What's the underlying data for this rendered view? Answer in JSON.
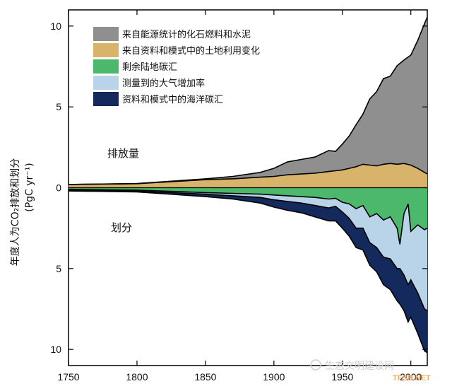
{
  "chart_data": {
    "type": "area",
    "ylabel": "年度人为CO₂排放和划分",
    "ylabel_unit": "(PgC yr⁻¹)",
    "xlim": [
      1750,
      2012
    ],
    "ylim": [
      -11,
      11
    ],
    "x_ticks": [
      1750,
      1800,
      1850,
      1900,
      1950,
      2000
    ],
    "y_ticks": [
      10,
      5,
      0,
      5,
      10
    ],
    "y_tick_values": [
      10,
      5,
      0,
      -5,
      -10
    ],
    "annotations": {
      "emissions": "排放量",
      "partition": "划分"
    },
    "legend_position": "top-right",
    "emissions_series": [
      {
        "name": "来自能源统计的化石燃料和水泥",
        "color": "#8f8f8f",
        "x": [
          1750,
          1800,
          1850,
          1870,
          1890,
          1900,
          1910,
          1920,
          1930,
          1940,
          1945,
          1950,
          1955,
          1960,
          1965,
          1970,
          1975,
          1980,
          1985,
          1990,
          1995,
          2000,
          2005,
          2010,
          2012
        ],
        "values": [
          0.003,
          0.01,
          0.05,
          0.15,
          0.3,
          0.5,
          0.8,
          0.9,
          1.0,
          1.3,
          1.2,
          1.6,
          2.0,
          2.6,
          3.1,
          4.1,
          4.6,
          5.3,
          5.4,
          6.1,
          6.4,
          6.8,
          7.9,
          9.2,
          9.7
        ]
      },
      {
        "name": "来自资料和模式中的土地利用变化",
        "color": "#d8b46a",
        "x": [
          1750,
          1800,
          1850,
          1870,
          1890,
          1900,
          1910,
          1920,
          1930,
          1940,
          1945,
          1950,
          1955,
          1960,
          1965,
          1970,
          1975,
          1980,
          1985,
          1990,
          1995,
          2000,
          2005,
          2010,
          2012
        ],
        "values": [
          0.2,
          0.25,
          0.5,
          0.55,
          0.65,
          0.7,
          0.8,
          0.85,
          0.9,
          1.0,
          1.05,
          1.1,
          1.2,
          1.3,
          1.45,
          1.4,
          1.35,
          1.45,
          1.5,
          1.45,
          1.5,
          1.4,
          1.2,
          0.95,
          0.85
        ]
      }
    ],
    "partition_series": [
      {
        "name": "剩余陆地碳汇",
        "color": "#4cb86b",
        "x": [
          1750,
          1800,
          1850,
          1870,
          1890,
          1900,
          1910,
          1920,
          1930,
          1940,
          1945,
          1950,
          1955,
          1960,
          1965,
          1970,
          1975,
          1980,
          1985,
          1990,
          1992,
          1995,
          1998,
          2000,
          2005,
          2010,
          2012
        ],
        "values": [
          0.1,
          0.15,
          0.3,
          0.35,
          0.4,
          0.45,
          0.5,
          0.55,
          0.6,
          0.7,
          0.65,
          0.9,
          1.0,
          1.3,
          1.1,
          1.8,
          1.6,
          2.0,
          1.8,
          2.5,
          3.5,
          1.6,
          1.0,
          2.7,
          2.3,
          2.6,
          2.5
        ]
      },
      {
        "name": "测量到的大气增加率",
        "color": "#b9d3e8",
        "x": [
          1750,
          1800,
          1850,
          1870,
          1890,
          1900,
          1910,
          1920,
          1930,
          1940,
          1945,
          1950,
          1955,
          1960,
          1965,
          1970,
          1975,
          1980,
          1985,
          1990,
          1992,
          1995,
          1998,
          2000,
          2005,
          2010,
          2012
        ],
        "values": [
          0.05,
          0.06,
          0.1,
          0.15,
          0.2,
          0.3,
          0.35,
          0.4,
          0.5,
          0.55,
          0.5,
          0.6,
          0.9,
          1.2,
          1.4,
          1.6,
          2.1,
          2.3,
          2.6,
          2.5,
          1.5,
          3.8,
          5.0,
          3.0,
          4.2,
          4.9,
          5.1
        ]
      },
      {
        "name": "资料和模式中的海洋碳汇",
        "color": "#142a5c",
        "x": [
          1750,
          1800,
          1850,
          1870,
          1890,
          1900,
          1910,
          1920,
          1930,
          1940,
          1945,
          1950,
          1955,
          1960,
          1965,
          1970,
          1975,
          1980,
          1985,
          1990,
          1992,
          1995,
          1998,
          2000,
          2005,
          2010,
          2012
        ],
        "values": [
          0.05,
          0.05,
          0.15,
          0.2,
          0.35,
          0.45,
          0.55,
          0.6,
          0.7,
          0.8,
          0.9,
          1.0,
          1.1,
          1.2,
          1.35,
          1.4,
          1.5,
          1.7,
          1.9,
          2.0,
          2.2,
          2.2,
          2.3,
          2.3,
          2.5,
          2.6,
          2.6
        ]
      }
    ]
  },
  "watermark": {
    "text": "生态文明建设网",
    "icon": "wechat-icon",
    "subtext": "TFSB.NET"
  }
}
